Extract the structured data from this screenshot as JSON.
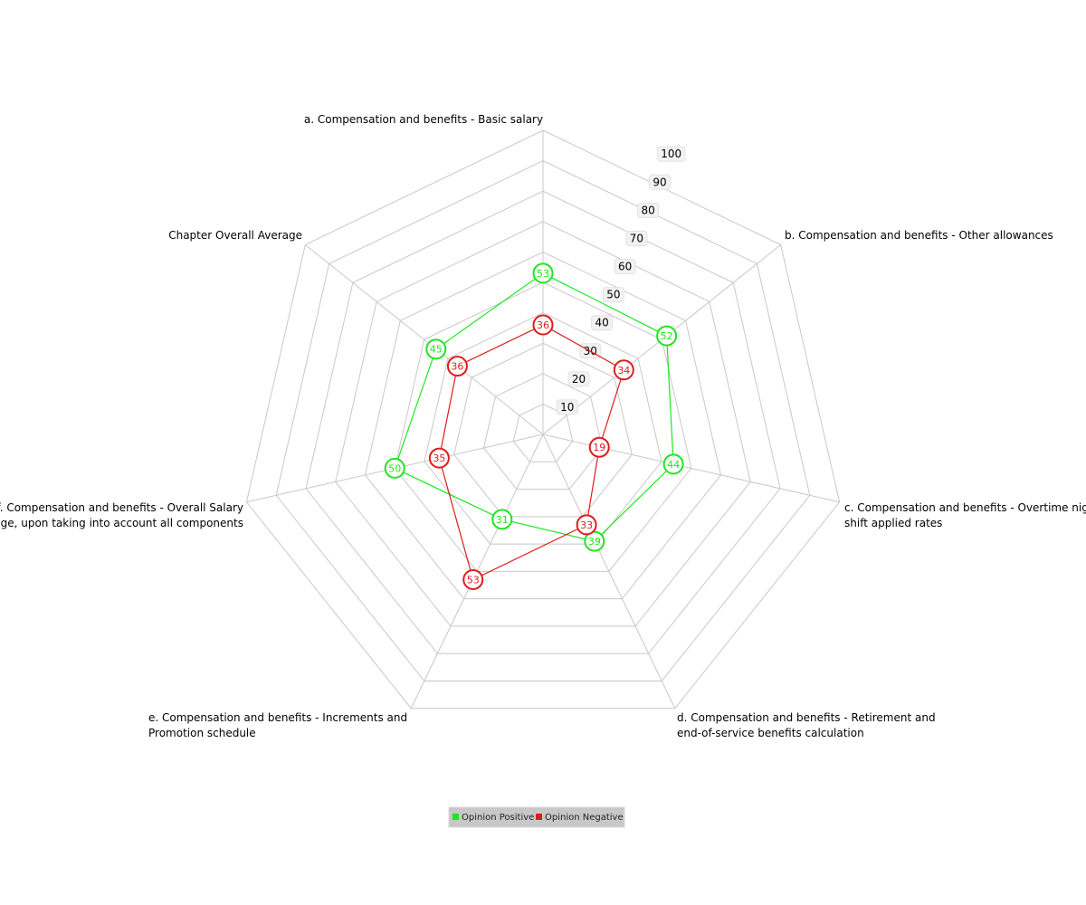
{
  "chart_data": {
    "type": "radar",
    "axes": [
      "a. Compensation and benefits - Basic salary",
      "b. Compensation and benefits - Other allowances",
      "c. Compensation and benefits - Overtime  night shift applied rates",
      "d. Compensation and benefits - Retirement and end-of-service benefits calculation",
      "e. Compensation and benefits - Increments and Promotion schedule",
      "f. Compensation and benefits - Overall Salary package, upon taking into account all components",
      "Chapter Overall Average"
    ],
    "r_ticks": [
      "10",
      "20",
      "30",
      "40",
      "50",
      "60",
      "70",
      "80",
      "90",
      "100"
    ],
    "r_range": [
      0,
      100
    ],
    "grid": true,
    "legend_position": "bottom",
    "series": [
      {
        "name": "Opinion Positive",
        "color": "#1ee61e",
        "values": [
          53,
          52,
          44,
          39,
          31,
          50,
          45
        ]
      },
      {
        "name": "Opinion Negative",
        "color": "#e01b1b",
        "values": [
          36,
          34,
          19,
          33,
          53,
          35,
          36
        ]
      }
    ]
  }
}
